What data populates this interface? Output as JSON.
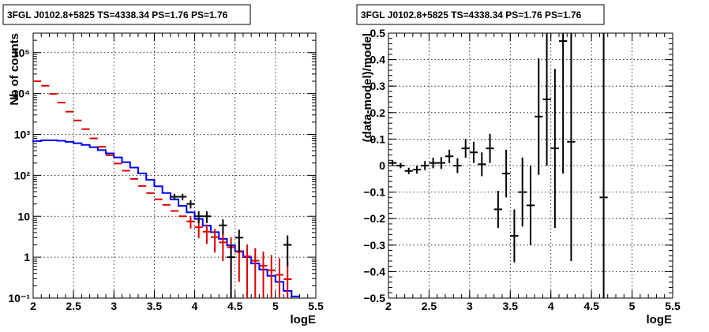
{
  "chart_data": [
    {
      "type": "histogram",
      "title": "3FGL J0102.8+5825 TS=4338.34 PS=1.76 PS=1.76",
      "xlabel": "logE",
      "ylabel": "Nb of counts",
      "xlim": [
        2,
        5.5
      ],
      "ylim": [
        0.1,
        300000
      ],
      "log_y": true,
      "grid": true,
      "x_ticks": [
        2,
        2.5,
        3,
        3.5,
        4,
        4.5,
        5,
        5.5
      ],
      "x_tick_labels": [
        "2",
        "2.5",
        "3",
        "3.5",
        "4",
        "4.5",
        "5",
        "5.5"
      ],
      "y_ticks": [
        0.1,
        1,
        10,
        100,
        1000,
        10000,
        100000
      ],
      "y_tick_labels": [
        "10⁻¹",
        "1",
        "10",
        "10²",
        "10³",
        "10⁴",
        "10⁵"
      ],
      "bin_width": 0.1,
      "series": [
        {
          "role": "model",
          "color": "#0000ff",
          "x": [
            2.0,
            2.05,
            2.15,
            2.25,
            2.35,
            2.45,
            2.55,
            2.65,
            2.75,
            2.85,
            2.95,
            3.05,
            3.15,
            3.25,
            3.35,
            3.45,
            3.55,
            3.65,
            3.75,
            3.85,
            3.95,
            4.05,
            4.15,
            4.25,
            4.35,
            4.45,
            4.55,
            4.65,
            4.75,
            4.85,
            4.95,
            5.05,
            5.15,
            5.25
          ],
          "values": [
            650,
            690,
            720,
            720,
            700,
            660,
            610,
            555,
            490,
            415,
            345,
            275,
            210,
            155,
            112,
            78,
            54,
            37,
            26,
            18,
            12.5,
            8.6,
            5.9,
            4.1,
            2.8,
            1.95,
            1.4,
            1.0,
            0.7,
            0.5,
            0.35,
            0.25,
            0.15,
            0.11
          ]
        },
        {
          "role": "model-component",
          "color": "#dd0000",
          "x": [
            2.05,
            2.15,
            2.25,
            2.35,
            2.45,
            2.55,
            2.65,
            2.75,
            2.85,
            2.95,
            3.05,
            3.15,
            3.25,
            3.35,
            3.45,
            3.55,
            3.65,
            3.75,
            3.85,
            3.95,
            4.05,
            4.15,
            4.25,
            4.35,
            4.45,
            4.55,
            4.65,
            4.75,
            4.85,
            4.95,
            5.05,
            5.15
          ],
          "values": [
            20000,
            15500,
            9800,
            6000,
            3600,
            2200,
            1350,
            800,
            500,
            310,
            195,
            130,
            82,
            55,
            37,
            26,
            19,
            13.5,
            10,
            7.5,
            5.4,
            4.2,
            3.1,
            2.3,
            1.75,
            1.35,
            1.05,
            0.82,
            0.62,
            0.48,
            0.37,
            0.29
          ],
          "errors": [
            0,
            0,
            0,
            0,
            0,
            0,
            0,
            0,
            0,
            0,
            0,
            0,
            0,
            0,
            0,
            0,
            0,
            0,
            0,
            2.5,
            2.5,
            2.1,
            1.8,
            1.5,
            1.3,
            1.1,
            1.0,
            0.85,
            0.75,
            0.65,
            0.57,
            0.5
          ]
        },
        {
          "role": "data",
          "color": "#000000",
          "x": [
            3.75,
            3.85,
            3.95,
            4.05,
            4.15,
            4.35,
            4.45,
            4.55,
            5.15
          ],
          "values": [
            30,
            30,
            20,
            10,
            10,
            6,
            1,
            3,
            2
          ],
          "errors": [
            5.5,
            5.5,
            4.5,
            3.2,
            3.2,
            2.4,
            1,
            1.7,
            1.4
          ]
        }
      ]
    },
    {
      "type": "scatter",
      "title": "3FGL J0102.8+5825 TS=4338.34 PS=1.76 PS=1.76",
      "xlabel": "logE",
      "ylabel": "(data-model)/model",
      "xlim": [
        2,
        5.5
      ],
      "ylim": [
        -0.5,
        0.5
      ],
      "grid": true,
      "x_ticks": [
        2,
        2.5,
        3,
        3.5,
        4,
        4.5,
        5,
        5.5
      ],
      "x_tick_labels": [
        "2",
        "2.5",
        "3",
        "3.5",
        "4",
        "4.5",
        "5",
        "5.5"
      ],
      "y_ticks": [
        -0.5,
        -0.4,
        -0.3,
        -0.2,
        -0.1,
        0,
        0.1,
        0.2,
        0.3,
        0.4,
        0.5
      ],
      "y_tick_labels": [
        "−0.5",
        "−0.4",
        "−0.3",
        "−0.2",
        "−0.1",
        "0",
        "0.1",
        "0.2",
        "0.3",
        "0.4",
        "0.5"
      ],
      "series": [
        {
          "role": "residuals",
          "color": "#000000",
          "x": [
            2.05,
            2.15,
            2.25,
            2.35,
            2.45,
            2.55,
            2.65,
            2.75,
            2.85,
            2.95,
            3.05,
            3.15,
            3.25,
            3.35,
            3.45,
            3.55,
            3.65,
            3.75,
            3.85,
            3.95,
            4.05,
            4.15,
            4.25,
            4.65
          ],
          "values": [
            0.01,
            0.0,
            -0.02,
            -0.015,
            0.0,
            0.01,
            0.01,
            0.035,
            0.0,
            0.065,
            0.05,
            0.005,
            0.065,
            -0.165,
            -0.03,
            -0.265,
            -0.1,
            -0.15,
            0.185,
            0.25,
            0.065,
            0.47,
            0.09,
            -0.12
          ],
          "errors": [
            0.01,
            0.01,
            0.012,
            0.015,
            0.017,
            0.02,
            0.022,
            0.025,
            0.028,
            0.035,
            0.04,
            0.045,
            0.055,
            0.07,
            0.09,
            0.1,
            0.13,
            0.15,
            0.22,
            0.25,
            0.3,
            0.5,
            0.45,
            0.8
          ]
        }
      ]
    }
  ]
}
